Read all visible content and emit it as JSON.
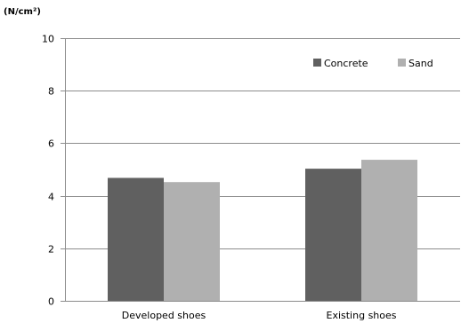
{
  "chart_data": {
    "type": "bar",
    "title": "",
    "unit_label": "(N/cm²)",
    "xlabel": "",
    "ylabel": "",
    "categories": [
      "Developed shoes",
      "Existing shoes"
    ],
    "series": [
      {
        "name": "Concrete",
        "values": [
          4.68,
          5.03
        ],
        "color": "#606060"
      },
      {
        "name": "Sand",
        "values": [
          4.52,
          5.37
        ],
        "color": "#b0b0b0"
      }
    ],
    "ylim": [
      0,
      10
    ],
    "yticks": [
      0,
      2,
      4,
      6,
      8,
      10
    ],
    "grid": true,
    "legend": "top-right"
  }
}
